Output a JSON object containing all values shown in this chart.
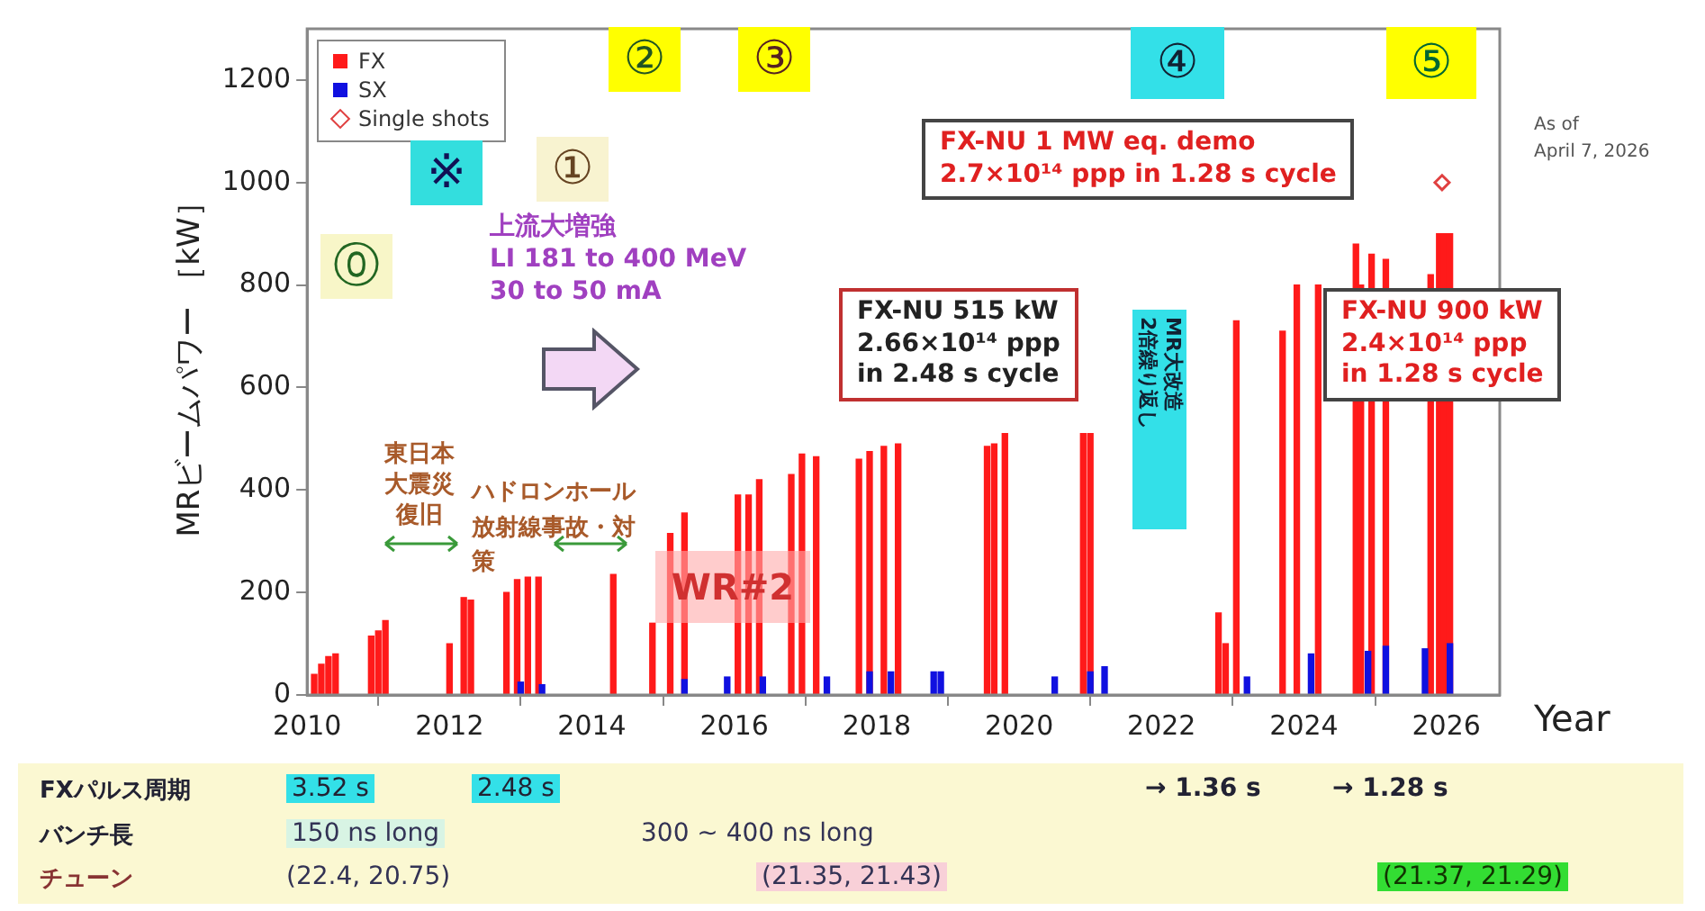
{
  "chart_data": {
    "type": "bar",
    "xlabel": "Year",
    "ylabel": "MRビームパワー ［kW］",
    "xlim": [
      2010,
      2026.75
    ],
    "xticks": [
      2010,
      2012,
      2014,
      2016,
      2018,
      2020,
      2022,
      2024,
      2026
    ],
    "ylim": [
      0,
      1300
    ],
    "yticks": [
      0,
      200,
      400,
      600,
      800,
      1000,
      1200
    ],
    "legend": "top left",
    "series": [
      {
        "name": "FX",
        "type": "bar",
        "color": "#ff1a1a",
        "x": [
          2010.1,
          2010.2,
          2010.3,
          2010.4,
          2010.9,
          2011.0,
          2011.1,
          2012.0,
          2012.2,
          2012.3,
          2012.8,
          2012.95,
          2013.1,
          2013.25,
          2014.3,
          2014.85,
          2015.1,
          2015.3,
          2016.05,
          2016.2,
          2016.35,
          2016.8,
          2016.95,
          2017.15,
          2017.75,
          2017.9,
          2018.1,
          2018.3,
          2019.55,
          2019.65,
          2019.8,
          2020.9,
          2021.0,
          2022.8,
          2022.9,
          2023.05,
          2023.7,
          2023.9,
          2024.2,
          2024.73,
          2024.8,
          2024.95,
          2025.15,
          2025.78,
          2025.9,
          2025.97,
          2026.05
        ],
        "values": [
          40,
          60,
          75,
          80,
          115,
          125,
          145,
          100,
          190,
          185,
          200,
          225,
          230,
          230,
          235,
          140,
          315,
          355,
          390,
          390,
          420,
          430,
          470,
          465,
          460,
          475,
          485,
          490,
          485,
          490,
          510,
          510,
          510,
          160,
          100,
          730,
          710,
          800,
          800,
          880,
          800,
          860,
          850,
          820,
          900,
          900,
          900
        ]
      },
      {
        "name": "SX",
        "type": "bar",
        "color": "#1010e0",
        "x": [
          2013.0,
          2013.3,
          2015.3,
          2015.9,
          2016.4,
          2017.3,
          2017.9,
          2018.2,
          2018.8,
          2018.9,
          2020.5,
          2021.0,
          2021.2,
          2023.2,
          2024.1,
          2024.9,
          2025.15,
          2025.7,
          2026.05
        ],
        "values": [
          25,
          20,
          30,
          35,
          35,
          35,
          45,
          45,
          45,
          45,
          35,
          45,
          55,
          35,
          80,
          85,
          95,
          90,
          100
        ]
      },
      {
        "name": "Single shots",
        "type": "scatter",
        "color": "#e04040",
        "marker": "diamond",
        "x": [
          2025.94
        ],
        "values": [
          1000
        ]
      }
    ],
    "annotations": [
      "⓪",
      "※",
      "①",
      "②",
      "③",
      "④",
      "⑤",
      "上流大増強\nLI 181 to 400 MeV\n30 to 50 mA",
      "東日本大震災復旧",
      "ハドロンホール放射線事故・対策",
      "WR#2",
      "FX-NU 515 kW\n2.66×10¹⁴ ppp\nin 2.48 s cycle",
      "FX-NU 1 MW eq. demo\n2.7×10¹⁴ ppp in 1.28 s cycle",
      "MR大改造\n2倍繰り返し",
      "FX-NU 900 kW\n2.4×10¹⁴ ppp\nin 1.28 s cycle",
      "As of\nApril 7, 2026",
      "FXパルス周期",
      "3.52 s",
      "2.48 s",
      "→ 1.36 s",
      "→ 1.28 s",
      "バンチ長",
      "150 ns long",
      "300 ~ 400 ns long",
      "チューン",
      "(22.4, 20.75)",
      "(21.35, 21.43)",
      "(21.37, 21.29)"
    ]
  }
}
